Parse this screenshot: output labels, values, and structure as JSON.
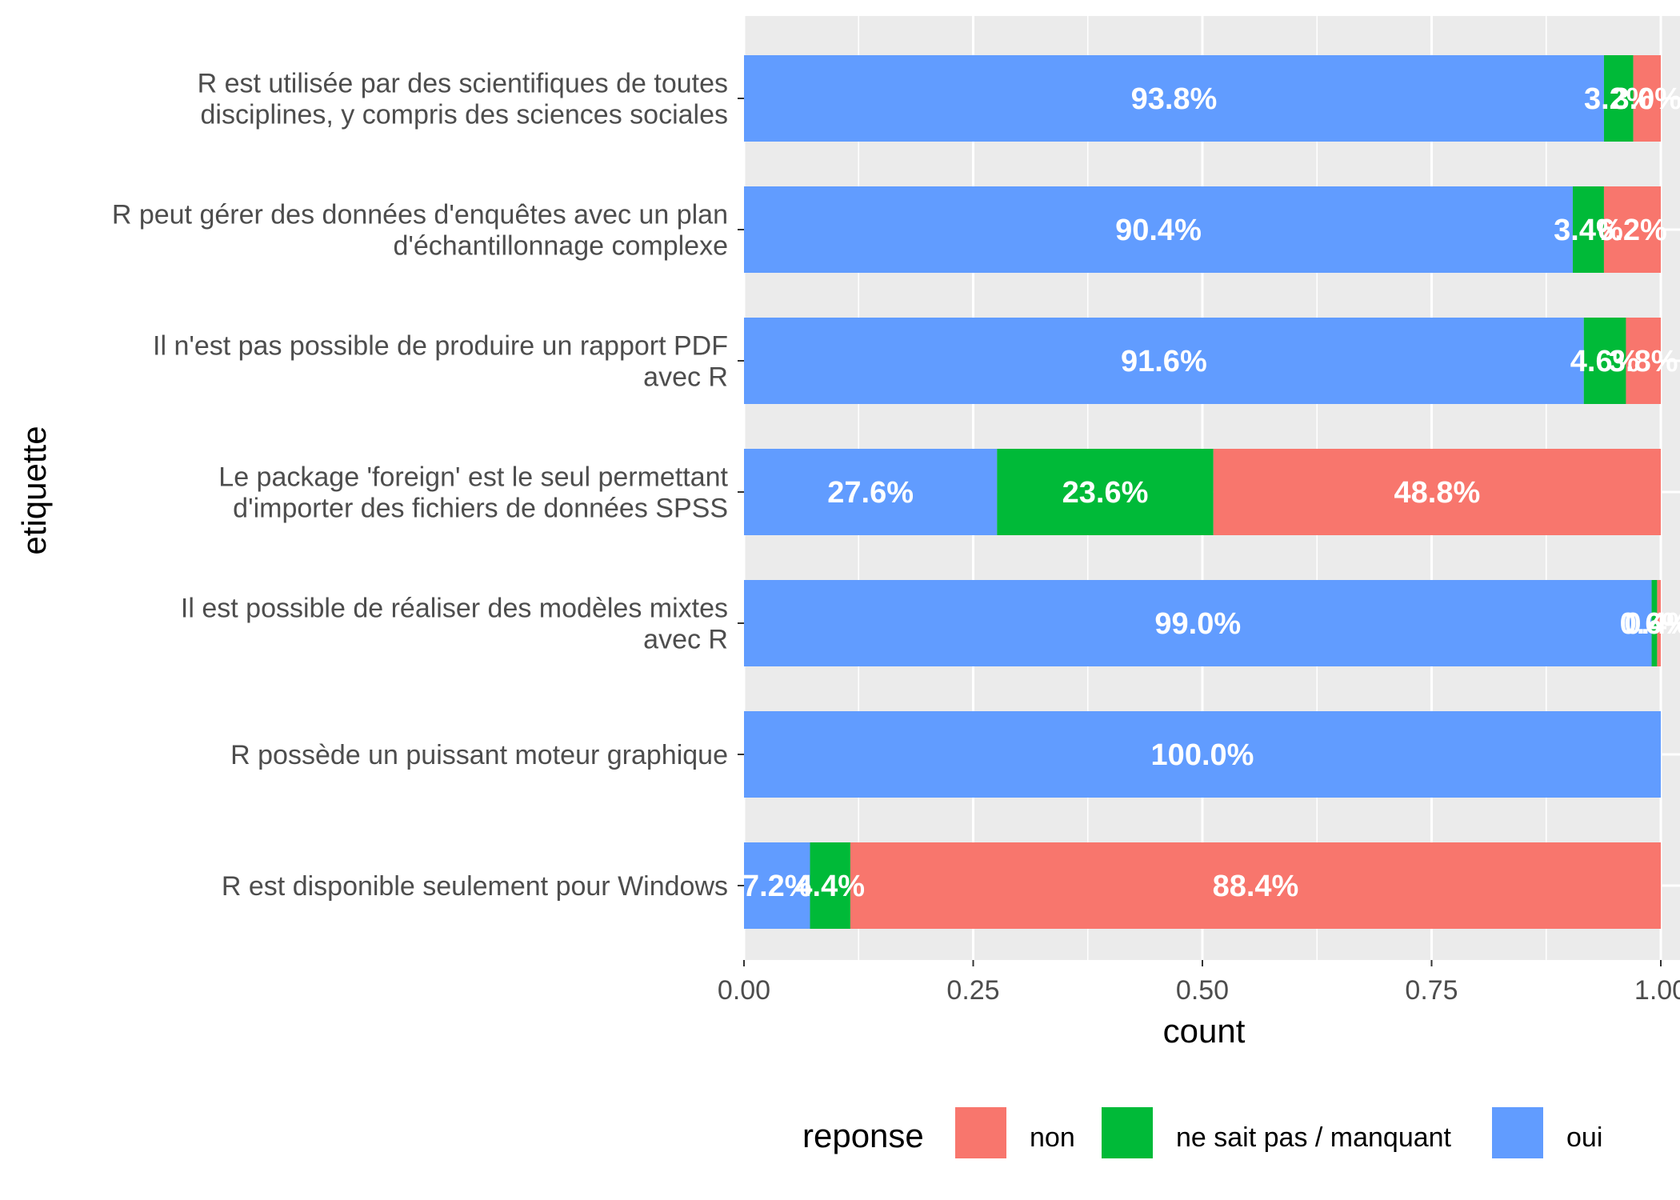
{
  "chart_data": {
    "type": "bar",
    "orientation": "horizontal",
    "stacked": true,
    "xlabel": "count",
    "ylabel": "etiquette",
    "xlim": [
      0,
      1
    ],
    "x_ticks": [
      "0.00",
      "0.25",
      "0.50",
      "0.75",
      "1.00"
    ],
    "grid": true,
    "legend_title": "reponse",
    "legend_position": "bottom",
    "legend": [
      {
        "name": "non",
        "color": "#F8766D"
      },
      {
        "name": "ne sait pas / manquant",
        "color": "#00BA38"
      },
      {
        "name": "oui",
        "color": "#619CFF"
      }
    ],
    "stack_order": [
      "oui",
      "ne sait pas / manquant",
      "non"
    ],
    "colors": {
      "oui": "#619CFF",
      "ne sait pas / manquant": "#00BA38",
      "non": "#F8766D"
    },
    "categories": [
      {
        "lines": [
          "R est utilisée par des scientifiques de toutes",
          "disciplines, y compris des sciences sociales"
        ],
        "values": {
          "oui": 0.938,
          "ne sait pas / manquant": 0.032,
          "non": 0.03
        },
        "labels": {
          "oui": "93.8%",
          "ne sait pas / manquant": "3.2%",
          "non": "3.0%"
        }
      },
      {
        "lines": [
          "R peut gérer des données d'enquêtes avec un plan",
          "d'échantillonnage complexe"
        ],
        "values": {
          "oui": 0.904,
          "ne sait pas / manquant": 0.034,
          "non": 0.062
        },
        "labels": {
          "oui": "90.4%",
          "ne sait pas / manquant": "3.4%",
          "non": "6.2%"
        }
      },
      {
        "lines": [
          "Il n'est pas possible de produire un rapport PDF",
          "avec R"
        ],
        "values": {
          "oui": 0.916,
          "ne sait pas / manquant": 0.046,
          "non": 0.038
        },
        "labels": {
          "oui": "91.6%",
          "ne sait pas / manquant": "4.6%",
          "non": "3.8%"
        }
      },
      {
        "lines": [
          "Le package 'foreign' est le seul permettant",
          "d'importer des fichiers de données SPSS"
        ],
        "values": {
          "oui": 0.276,
          "ne sait pas / manquant": 0.236,
          "non": 0.488
        },
        "labels": {
          "oui": "27.6%",
          "ne sait pas / manquant": "23.6%",
          "non": "48.8%"
        }
      },
      {
        "lines": [
          "Il est possible de réaliser des modèles mixtes",
          "avec R"
        ],
        "values": {
          "oui": 0.99,
          "ne sait pas / manquant": 0.006,
          "non": 0.004
        },
        "labels": {
          "oui": "99.0%",
          "ne sait pas / manquant": "0.6%",
          "non": "0.4%"
        }
      },
      {
        "lines": [
          "R possède un puissant moteur graphique"
        ],
        "values": {
          "oui": 1.0,
          "ne sait pas / manquant": 0.0,
          "non": 0.0
        },
        "labels": {
          "oui": "100.0%",
          "ne sait pas / manquant": "",
          "non": ""
        }
      },
      {
        "lines": [
          "R est disponible seulement pour Windows"
        ],
        "values": {
          "oui": 0.072,
          "ne sait pas / manquant": 0.044,
          "non": 0.884
        },
        "labels": {
          "oui": "7.2%",
          "ne sait pas / manquant": "4.4%",
          "non": "88.4%"
        }
      }
    ]
  }
}
